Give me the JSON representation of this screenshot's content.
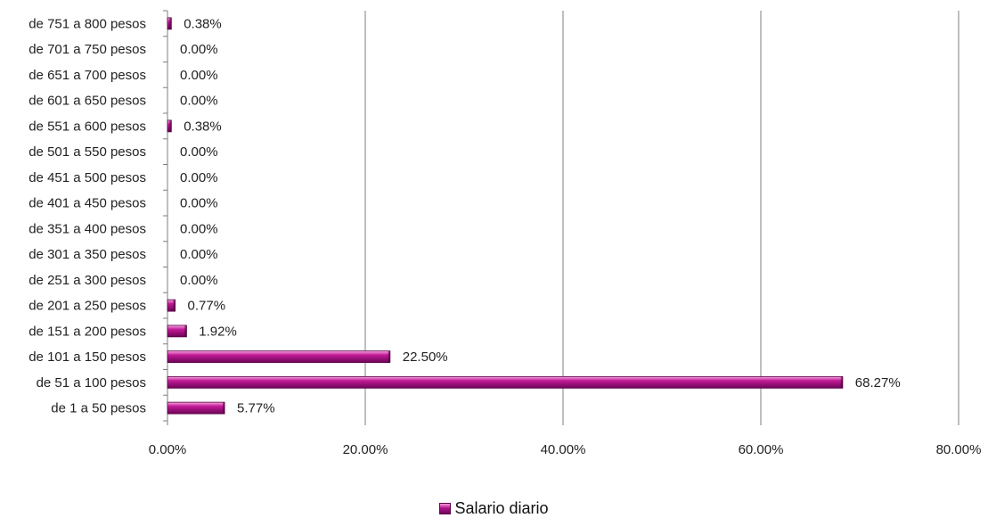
{
  "chart_data": {
    "type": "bar",
    "orientation": "horizontal",
    "categories": [
      "de 1 a 50 pesos",
      "de 51 a 100 pesos",
      "de 101 a 150 pesos",
      "de 151 a 200 pesos",
      "de 201 a 250 pesos",
      "de 251 a 300 pesos",
      "de 301 a 350 pesos",
      "de 351 a 400 pesos",
      "de 401 a 450 pesos",
      "de 451 a 500 pesos",
      "de 501 a 550 pesos",
      "de 551 a 600 pesos",
      "de 601 a 650 pesos",
      "de 651 a 700 pesos",
      "de 701 a 750 pesos",
      "de 751 a 800 pesos"
    ],
    "series": [
      {
        "name": "Salario diario",
        "values": [
          5.77,
          68.27,
          22.5,
          1.92,
          0.77,
          0,
          0,
          0,
          0,
          0,
          0,
          0.38,
          0,
          0,
          0,
          0.38
        ],
        "labels": [
          "5.77%",
          "68.27%",
          "22.50%",
          "1.92%",
          "0.77%",
          "0.00%",
          "0.00%",
          "0.00%",
          "0.00%",
          "0.00%",
          "0.00%",
          "0.38%",
          "0.00%",
          "0.00%",
          "0.00%",
          "0.38%"
        ]
      }
    ],
    "xlim": [
      0,
      80
    ],
    "xticks": [
      0,
      20,
      40,
      60,
      80
    ],
    "xtick_labels": [
      "0.00%",
      "20.00%",
      "40.00%",
      "60.00%",
      "80.00%"
    ],
    "grid": "vertical",
    "legend_position": "bottom",
    "bar_color": "#a0127d",
    "title": "",
    "xlabel": "",
    "ylabel": ""
  }
}
